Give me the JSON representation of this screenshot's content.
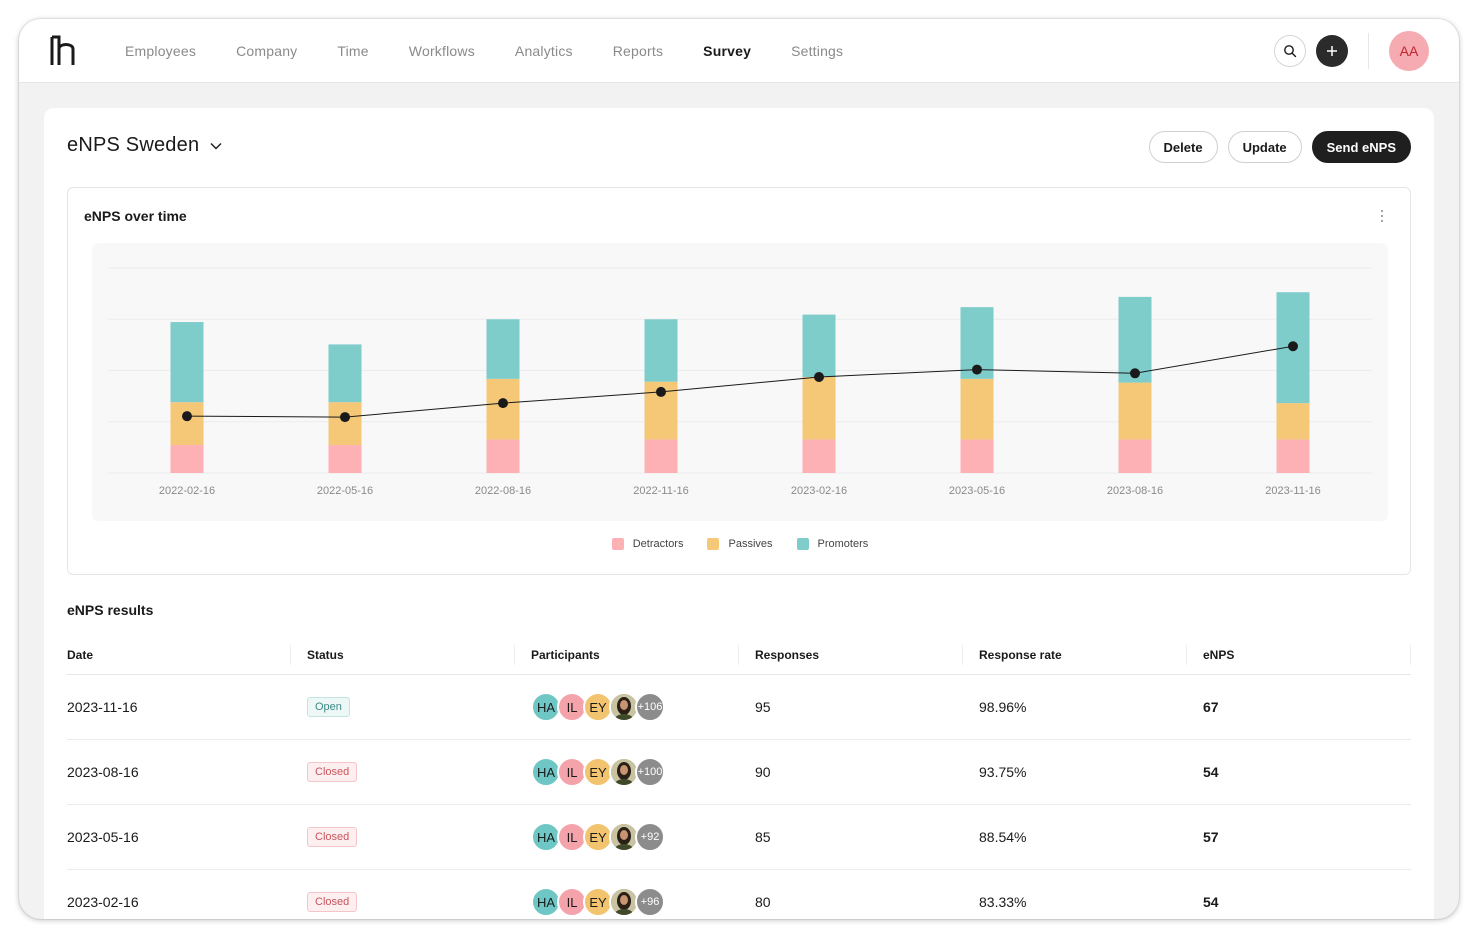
{
  "nav": {
    "items": [
      "Employees",
      "Company",
      "Time",
      "Workflows",
      "Analytics",
      "Reports",
      "Survey",
      "Settings"
    ],
    "active": "Survey"
  },
  "user": {
    "initials": "AA"
  },
  "page": {
    "title": "eNPS Sweden",
    "buttons": {
      "delete": "Delete",
      "update": "Update",
      "send": "Send eNPS"
    }
  },
  "chart_card": {
    "title": "eNPS over time"
  },
  "chart_data": {
    "type": "bar",
    "stacked": true,
    "categories": [
      "2022-02-16",
      "2022-05-16",
      "2022-08-16",
      "2022-11-16",
      "2023-02-16",
      "2023-05-16",
      "2023-08-16",
      "2023-11-16"
    ],
    "series": [
      {
        "name": "Detractors",
        "color": "#fdb1b5",
        "values": [
          30,
          30,
          36,
          36,
          36,
          36,
          36,
          36
        ]
      },
      {
        "name": "Passives",
        "color": "#f5c878",
        "values": [
          46,
          46,
          65,
          62,
          67,
          65,
          61,
          39
        ]
      },
      {
        "name": "Promoters",
        "color": "#7ecdcb",
        "values": [
          86,
          62,
          64,
          67,
          67,
          77,
          92,
          119
        ]
      }
    ],
    "line": {
      "name": "eNPS",
      "color": "#1a1a1a",
      "values": [
        61,
        60,
        75,
        87,
        103,
        111,
        107,
        136
      ]
    },
    "ylim": [
      0,
      220
    ],
    "grid": true,
    "legend": "bottom-center"
  },
  "results": {
    "title": "eNPS results",
    "columns": [
      "Date",
      "Status",
      "Participants",
      "Responses",
      "Response rate",
      "eNPS"
    ],
    "rows": [
      {
        "date": "2023-11-16",
        "status": "Open",
        "participants": [
          "HA",
          "IL",
          "EY"
        ],
        "more": "+106",
        "responses": "95",
        "rate": "98.96%",
        "enps": "67"
      },
      {
        "date": "2023-08-16",
        "status": "Closed",
        "participants": [
          "HA",
          "IL",
          "EY"
        ],
        "more": "+100",
        "responses": "90",
        "rate": "93.75%",
        "enps": "54"
      },
      {
        "date": "2023-05-16",
        "status": "Closed",
        "participants": [
          "HA",
          "IL",
          "EY"
        ],
        "more": "+92",
        "responses": "85",
        "rate": "88.54%",
        "enps": "57"
      },
      {
        "date": "2023-02-16",
        "status": "Closed",
        "participants": [
          "HA",
          "IL",
          "EY"
        ],
        "more": "+96",
        "responses": "80",
        "rate": "83.33%",
        "enps": "54"
      }
    ]
  }
}
